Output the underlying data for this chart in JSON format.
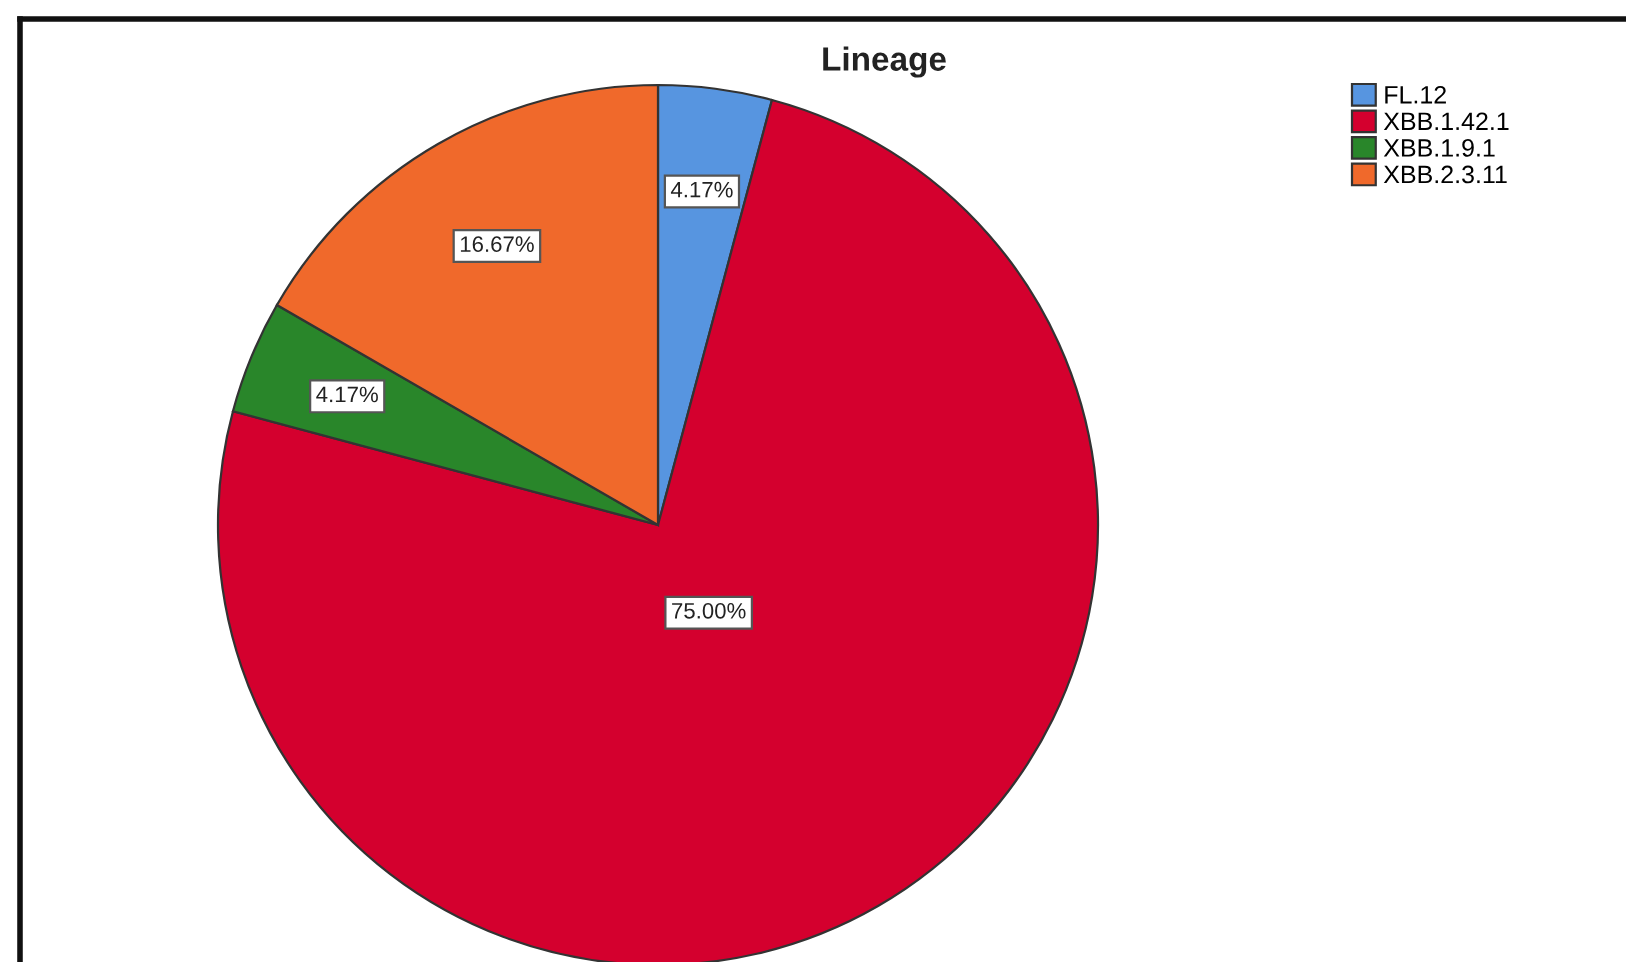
{
  "chart_data": {
    "type": "pie",
    "title": "Lineage",
    "categories": [
      "FL.12",
      "XBB.1.42.1",
      "XBB.1.9.1",
      "XBB.2.3.11"
    ],
    "values": [
      4.17,
      75.0,
      4.17,
      16.67
    ],
    "colors": [
      "#5795e0",
      "#d4002e",
      "#29862a",
      "#f0692b"
    ],
    "value_labels": [
      "4.17%",
      "75.00%",
      "4.17%",
      "16.67%"
    ],
    "legend": "top right"
  }
}
